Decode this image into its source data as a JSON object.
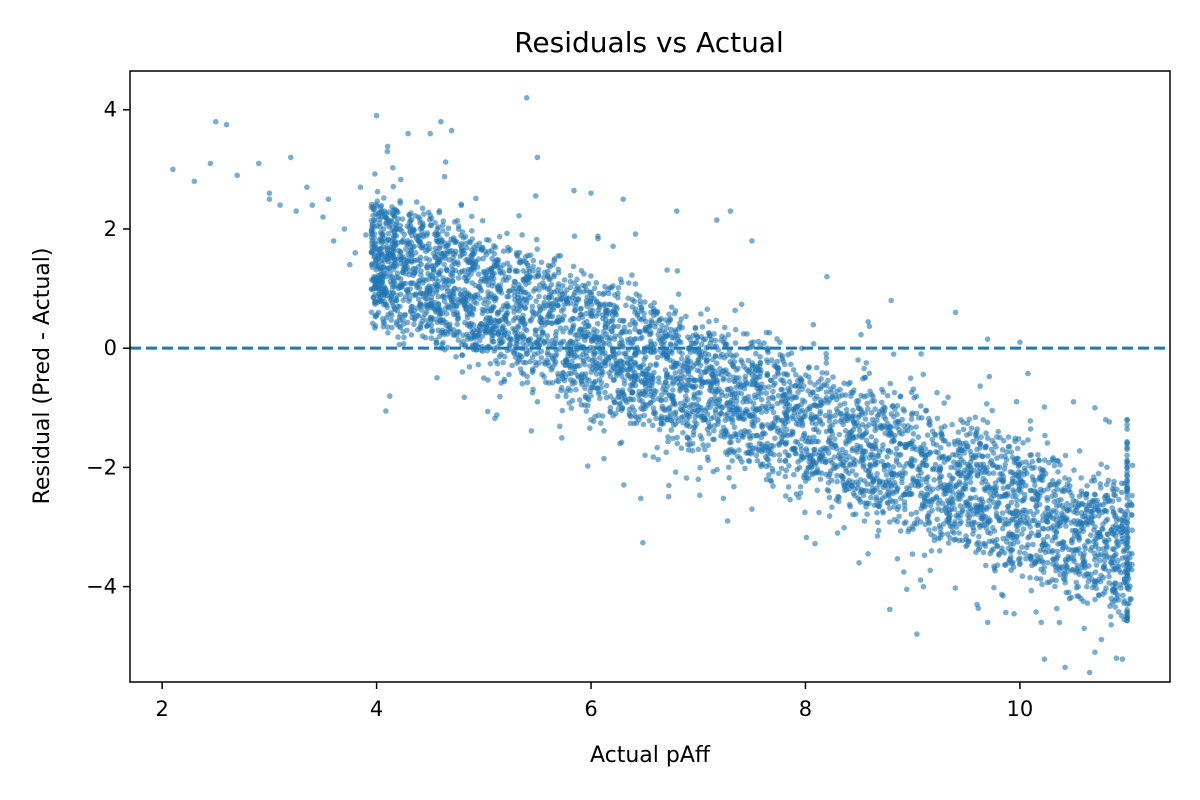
{
  "chart_data": {
    "type": "scatter",
    "title": "Residuals vs Actual",
    "xlabel": "Actual pAff",
    "ylabel": "Residual (Pred - Actual)",
    "xlim": [
      1.7,
      11.4
    ],
    "ylim": [
      -5.6,
      4.65
    ],
    "x_ticks": [
      2,
      4,
      6,
      8,
      10
    ],
    "y_ticks": [
      -4,
      -2,
      0,
      2,
      4
    ],
    "x_tick_labels": [
      "2",
      "4",
      "6",
      "8",
      "10"
    ],
    "y_tick_labels": [
      "−4",
      "−2",
      "0",
      "2",
      "4"
    ],
    "grid": false,
    "legend": "none",
    "reference_line": {
      "y": 0,
      "style": "dashed",
      "color": "#1f77b4"
    },
    "series": [
      {
        "color": "#1f77b4",
        "opacity": 0.6,
        "points": [
          [
            2.1,
            3.0
          ],
          [
            2.3,
            2.8
          ],
          [
            2.45,
            3.1
          ],
          [
            2.5,
            3.8
          ],
          [
            2.6,
            3.75
          ],
          [
            2.7,
            2.9
          ],
          [
            2.9,
            3.1
          ],
          [
            3.0,
            2.6
          ],
          [
            3.2,
            3.2
          ],
          [
            3.25,
            2.3
          ],
          [
            3.4,
            2.4
          ],
          [
            3.5,
            2.2
          ],
          [
            3.6,
            1.8
          ],
          [
            3.7,
            2.0
          ],
          [
            3.8,
            1.6
          ],
          [
            3.9,
            1.9
          ],
          [
            3.0,
            2.5
          ],
          [
            3.1,
            2.4
          ],
          [
            3.35,
            2.7
          ],
          [
            3.55,
            2.5
          ],
          [
            3.75,
            1.4
          ],
          [
            3.85,
            2.7
          ],
          [
            4.0,
            3.9
          ],
          [
            4.1,
            3.3
          ],
          [
            4.5,
            3.6
          ],
          [
            4.6,
            3.8
          ],
          [
            4.7,
            3.65
          ],
          [
            5.4,
            4.2
          ],
          [
            5.5,
            3.2
          ],
          [
            6.0,
            2.6
          ],
          [
            6.3,
            2.5
          ],
          [
            6.8,
            2.3
          ],
          [
            7.3,
            2.3
          ],
          [
            7.5,
            1.8
          ],
          [
            8.2,
            1.2
          ],
          [
            8.8,
            0.8
          ],
          [
            9.4,
            0.6
          ],
          [
            9.7,
            0.15
          ],
          [
            10.0,
            0.1
          ],
          [
            10.5,
            -0.9
          ],
          [
            10.7,
            -1.0
          ],
          [
            10.8,
            -1.2
          ],
          [
            11.0,
            -1.2
          ],
          [
            11.0,
            -4.5
          ],
          [
            10.9,
            -5.2
          ],
          [
            10.7,
            -5.1
          ],
          [
            10.2,
            -4.6
          ],
          [
            9.7,
            -4.6
          ],
          [
            9.6,
            -4.3
          ],
          [
            9.1,
            -4.0
          ],
          [
            8.5,
            -3.6
          ],
          [
            8.3,
            -3.1
          ],
          [
            4.6,
            0.0
          ],
          [
            4.8,
            -0.4
          ],
          [
            5.0,
            -0.5
          ],
          [
            5.5,
            -0.9
          ],
          [
            6.0,
            -1.2
          ],
          [
            7.0,
            -2.2
          ],
          [
            7.5,
            -2.7
          ],
          [
            10.6,
            -4.7
          ],
          [
            11.0,
            -3.0
          ],
          [
            11.0,
            -2.0
          ],
          [
            10.9,
            -4.2
          ],
          [
            10.85,
            -3.6
          ]
        ],
        "bands": [
          {
            "x_range": [
              3.95,
              11.05
            ],
            "y_center_at_x4": 1.5,
            "slope": -0.7,
            "half_width_core": 0.9,
            "half_width_spread": 1.5
          }
        ]
      }
    ]
  }
}
